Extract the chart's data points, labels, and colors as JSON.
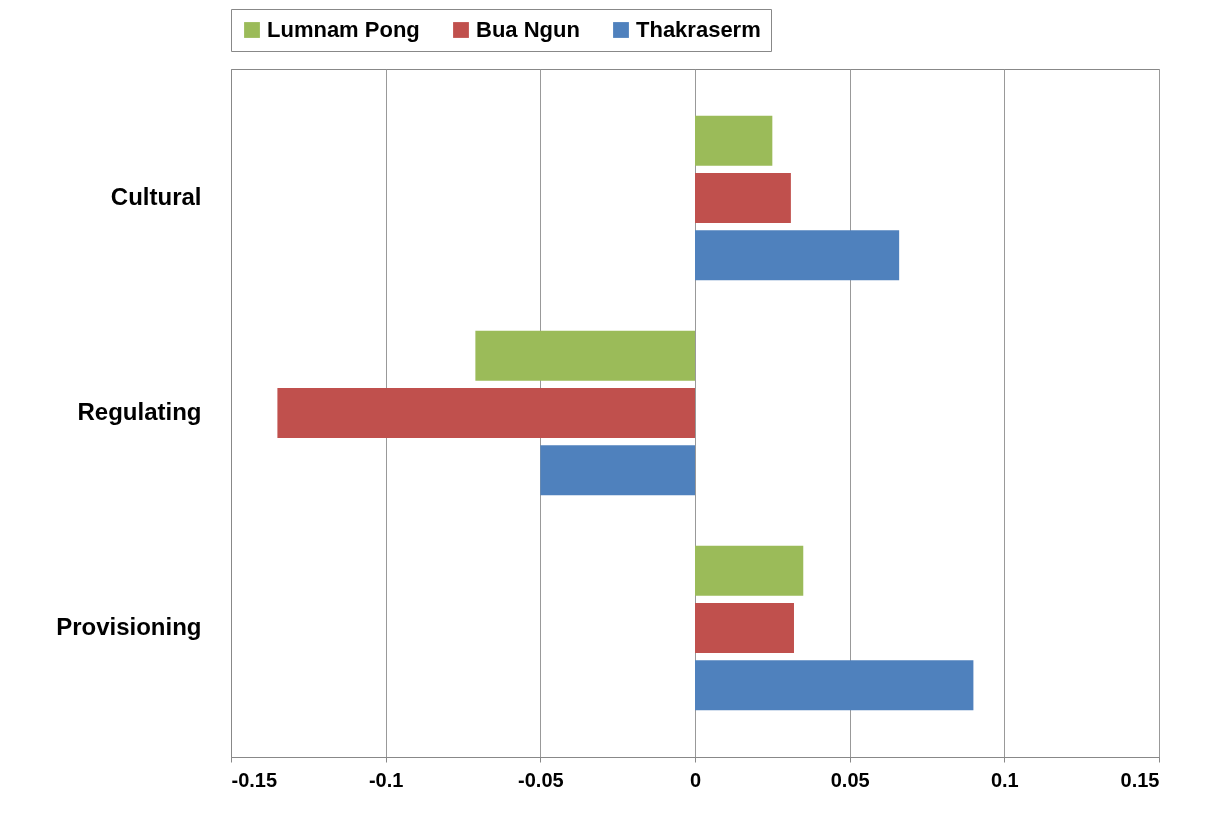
{
  "chart_data": {
    "type": "bar",
    "orientation": "horizontal",
    "categories": [
      "Cultural",
      "Regulating",
      "Provisioning"
    ],
    "series": [
      {
        "name": "Lumnam Pong",
        "color": "#9bbb59",
        "values": [
          0.025,
          -0.071,
          0.035
        ]
      },
      {
        "name": "Bua Ngun",
        "color": "#c0504d",
        "values": [
          0.031,
          -0.135,
          0.032
        ]
      },
      {
        "name": "Thakraserm",
        "color": "#4f81bd",
        "values": [
          0.066,
          -0.05,
          0.09
        ]
      }
    ],
    "xlim": [
      -0.15,
      0.15
    ],
    "xticks": [
      -0.15,
      -0.1,
      -0.05,
      0,
      0.05,
      0.1,
      0.15
    ],
    "grid": "x",
    "legend": "top"
  }
}
